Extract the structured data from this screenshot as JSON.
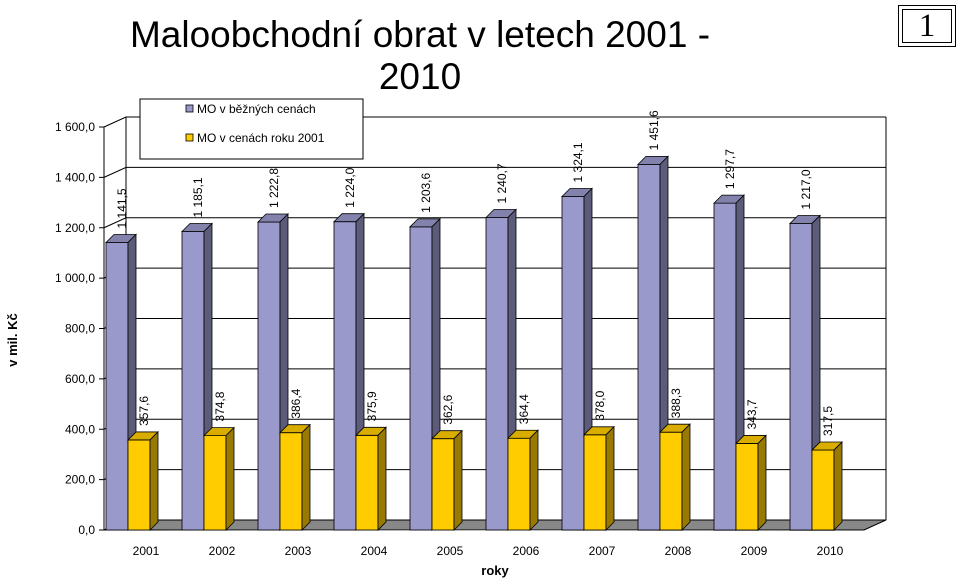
{
  "chart_data": {
    "type": "bar",
    "title": "Maloobchodní obrat v letech 2001 - 2010",
    "page_number": "1",
    "xlabel": "roky",
    "ylabel": "v mil. Kč",
    "ylim": [
      0,
      1600
    ],
    "y_ticks": [
      "0,0",
      "200,0",
      "400,0",
      "600,0",
      "800,0",
      "1 000,0",
      "1 200,0",
      "1 400,0",
      "1 600,0"
    ],
    "categories": [
      "2001",
      "2002",
      "2003",
      "2004",
      "2005",
      "2006",
      "2007",
      "2008",
      "2009",
      "2010"
    ],
    "grid": true,
    "legend_position": "top-left",
    "series": [
      {
        "name": "MO v běžných cenách",
        "color": "#9999cc",
        "values": [
          1141.5,
          1185.1,
          1222.8,
          1224.0,
          1203.6,
          1240.7,
          1324.1,
          1451.6,
          1297.7,
          1217.0
        ],
        "labels": [
          "1 141,5",
          "1 185,1",
          "1 222,8",
          "1 224,0",
          "1 203,6",
          "1 240,7",
          "1 324,1",
          "1 451,6",
          "1 297,7",
          "1 217,0"
        ]
      },
      {
        "name": "MO v cenách roku 2001",
        "color": "#ffcc00",
        "values": [
          357.6,
          374.8,
          386.4,
          375.9,
          362.6,
          364.4,
          378.0,
          388.3,
          343.7,
          317.5
        ],
        "labels": [
          "357,6",
          "374,8",
          "386,4",
          "375,9",
          "362,6",
          "364,4",
          "378,0",
          "388,3",
          "343,7",
          "317,5"
        ]
      }
    ]
  }
}
